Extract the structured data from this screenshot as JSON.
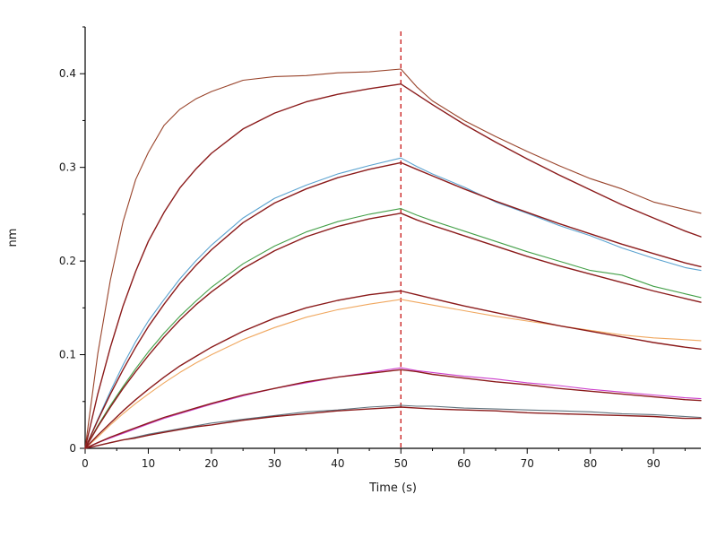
{
  "figure": {
    "background": "#ffffff",
    "description": "Bio-layer interferometry binding kinetics sensorgram: association phase 0-50 s, dissociation phase 50-97.5 s, with measured traces and dark-red fitted curves"
  },
  "chart_data": {
    "type": "line",
    "title": "",
    "xlabel": "Time (s)",
    "ylabel": "nm",
    "xlim": [
      0,
      97.5
    ],
    "ylim": [
      0,
      0.45
    ],
    "grid": false,
    "legend": "none",
    "axis_color": "#000000",
    "x_major_ticks": [
      0,
      10,
      20,
      30,
      40,
      50,
      60,
      70,
      80,
      90
    ],
    "x_tick_labels": [
      "0",
      "10",
      "20",
      "30",
      "40",
      "50",
      "60",
      "70",
      "80",
      "90"
    ],
    "x_minor_ticks": [
      5,
      15,
      25,
      35,
      45,
      55,
      65,
      75,
      85,
      95
    ],
    "y_major_ticks": [
      0,
      0.1,
      0.2,
      0.3,
      0.4
    ],
    "y_tick_labels": [
      "0",
      "0.1",
      "0.2",
      "0.3",
      "0.4"
    ],
    "y_minor_ticks": [
      0.05,
      0.15,
      0.25,
      0.35,
      0.45
    ],
    "marker_line": {
      "x": 50,
      "style": "dashed",
      "color": "#cc2222",
      "meaning": "association/dissociation boundary"
    },
    "x": [
      0,
      2,
      4,
      6,
      8,
      10,
      12.5,
      15,
      17.5,
      20,
      25,
      30,
      35,
      40,
      45,
      50,
      52.5,
      55,
      60,
      65,
      70,
      75,
      80,
      85,
      90,
      95,
      97.5
    ],
    "series": [
      {
        "name": "trace-1-measured",
        "role": "measured",
        "color": "#99442b",
        "width": 1.1,
        "y": [
          0,
          0.101,
          0.18,
          0.242,
          0.287,
          0.316,
          0.345,
          0.362,
          0.373,
          0.381,
          0.393,
          0.397,
          0.398,
          0.401,
          0.402,
          0.405,
          0.386,
          0.371,
          0.35,
          0.333,
          0.317,
          0.302,
          0.288,
          0.277,
          0.263,
          0.255,
          0.251
        ]
      },
      {
        "name": "trace-1-fit",
        "role": "fit",
        "color": "#8b1b1b",
        "width": 1.4,
        "y": [
          0,
          0.058,
          0.108,
          0.152,
          0.189,
          0.221,
          0.252,
          0.278,
          0.298,
          0.315,
          0.341,
          0.358,
          0.37,
          0.378,
          0.384,
          0.389,
          0.378,
          0.367,
          0.346,
          0.327,
          0.309,
          0.292,
          0.276,
          0.26,
          0.246,
          0.232,
          0.226
        ]
      },
      {
        "name": "trace-2-measured",
        "role": "measured",
        "color": "#5ba3d0",
        "width": 1.1,
        "y": [
          0,
          0.031,
          0.061,
          0.089,
          0.114,
          0.136,
          0.159,
          0.181,
          0.2,
          0.217,
          0.246,
          0.267,
          0.281,
          0.293,
          0.302,
          0.31,
          0.301,
          0.293,
          0.279,
          0.263,
          0.251,
          0.238,
          0.227,
          0.214,
          0.203,
          0.193,
          0.19
        ]
      },
      {
        "name": "trace-2-fit",
        "role": "fit",
        "color": "#8b1b1b",
        "width": 1.4,
        "y": [
          0,
          0.03,
          0.058,
          0.084,
          0.108,
          0.13,
          0.154,
          0.176,
          0.195,
          0.212,
          0.241,
          0.262,
          0.277,
          0.289,
          0.298,
          0.305,
          0.298,
          0.291,
          0.277,
          0.264,
          0.252,
          0.24,
          0.229,
          0.218,
          0.208,
          0.198,
          0.194
        ]
      },
      {
        "name": "trace-3-measured",
        "role": "measured",
        "color": "#44a049",
        "width": 1.1,
        "y": [
          0,
          0.024,
          0.046,
          0.066,
          0.085,
          0.103,
          0.123,
          0.141,
          0.157,
          0.172,
          0.197,
          0.216,
          0.231,
          0.242,
          0.25,
          0.256,
          0.249,
          0.243,
          0.232,
          0.221,
          0.21,
          0.2,
          0.19,
          0.185,
          0.173,
          0.165,
          0.161
        ]
      },
      {
        "name": "trace-3-fit",
        "role": "fit",
        "color": "#8b1b1b",
        "width": 1.4,
        "y": [
          0,
          0.023,
          0.044,
          0.064,
          0.082,
          0.099,
          0.119,
          0.137,
          0.153,
          0.167,
          0.192,
          0.211,
          0.226,
          0.237,
          0.245,
          0.251,
          0.244,
          0.238,
          0.227,
          0.216,
          0.205,
          0.195,
          0.186,
          0.177,
          0.168,
          0.16,
          0.156
        ]
      },
      {
        "name": "trace-4-measured",
        "role": "measured",
        "color": "#f0a860",
        "width": 1.1,
        "y": [
          0,
          0.012,
          0.025,
          0.037,
          0.048,
          0.058,
          0.07,
          0.081,
          0.091,
          0.1,
          0.116,
          0.129,
          0.14,
          0.148,
          0.154,
          0.159,
          0.156,
          0.153,
          0.147,
          0.141,
          0.136,
          0.131,
          0.126,
          0.121,
          0.118,
          0.116,
          0.115
        ]
      },
      {
        "name": "trace-4-fit",
        "role": "fit",
        "color": "#8b1b1b",
        "width": 1.4,
        "y": [
          0,
          0.014,
          0.027,
          0.04,
          0.052,
          0.063,
          0.076,
          0.088,
          0.098,
          0.108,
          0.125,
          0.139,
          0.15,
          0.158,
          0.164,
          0.168,
          0.164,
          0.16,
          0.152,
          0.145,
          0.138,
          0.131,
          0.125,
          0.119,
          0.113,
          0.108,
          0.106
        ]
      },
      {
        "name": "trace-5-measured",
        "role": "measured",
        "color": "#cc3fcc",
        "width": 1.1,
        "y": [
          0,
          0.006,
          0.011,
          0.016,
          0.021,
          0.026,
          0.032,
          0.037,
          0.042,
          0.047,
          0.056,
          0.064,
          0.07,
          0.076,
          0.081,
          0.086,
          0.083,
          0.081,
          0.077,
          0.074,
          0.07,
          0.067,
          0.063,
          0.06,
          0.057,
          0.054,
          0.053
        ]
      },
      {
        "name": "trace-5-fit",
        "role": "fit",
        "color": "#8b1b1b",
        "width": 1.4,
        "y": [
          0,
          0.006,
          0.012,
          0.017,
          0.022,
          0.027,
          0.033,
          0.038,
          0.043,
          0.048,
          0.057,
          0.064,
          0.071,
          0.076,
          0.08,
          0.084,
          0.082,
          0.079,
          0.075,
          0.071,
          0.068,
          0.064,
          0.061,
          0.058,
          0.055,
          0.052,
          0.051
        ]
      },
      {
        "name": "trace-6-measured",
        "role": "measured",
        "color": "#60747f",
        "width": 1.1,
        "y": [
          0,
          0.003,
          0.006,
          0.009,
          0.012,
          0.015,
          0.018,
          0.021,
          0.024,
          0.027,
          0.031,
          0.035,
          0.039,
          0.041,
          0.044,
          0.046,
          0.045,
          0.045,
          0.043,
          0.042,
          0.041,
          0.04,
          0.039,
          0.037,
          0.036,
          0.034,
          0.033
        ]
      },
      {
        "name": "trace-6-fit",
        "role": "fit",
        "color": "#8b1b1b",
        "width": 1.4,
        "y": [
          0,
          0.003,
          0.006,
          0.009,
          0.011,
          0.014,
          0.017,
          0.02,
          0.023,
          0.025,
          0.03,
          0.034,
          0.037,
          0.04,
          0.042,
          0.044,
          0.043,
          0.042,
          0.041,
          0.04,
          0.038,
          0.037,
          0.036,
          0.035,
          0.034,
          0.032,
          0.032
        ]
      }
    ]
  }
}
